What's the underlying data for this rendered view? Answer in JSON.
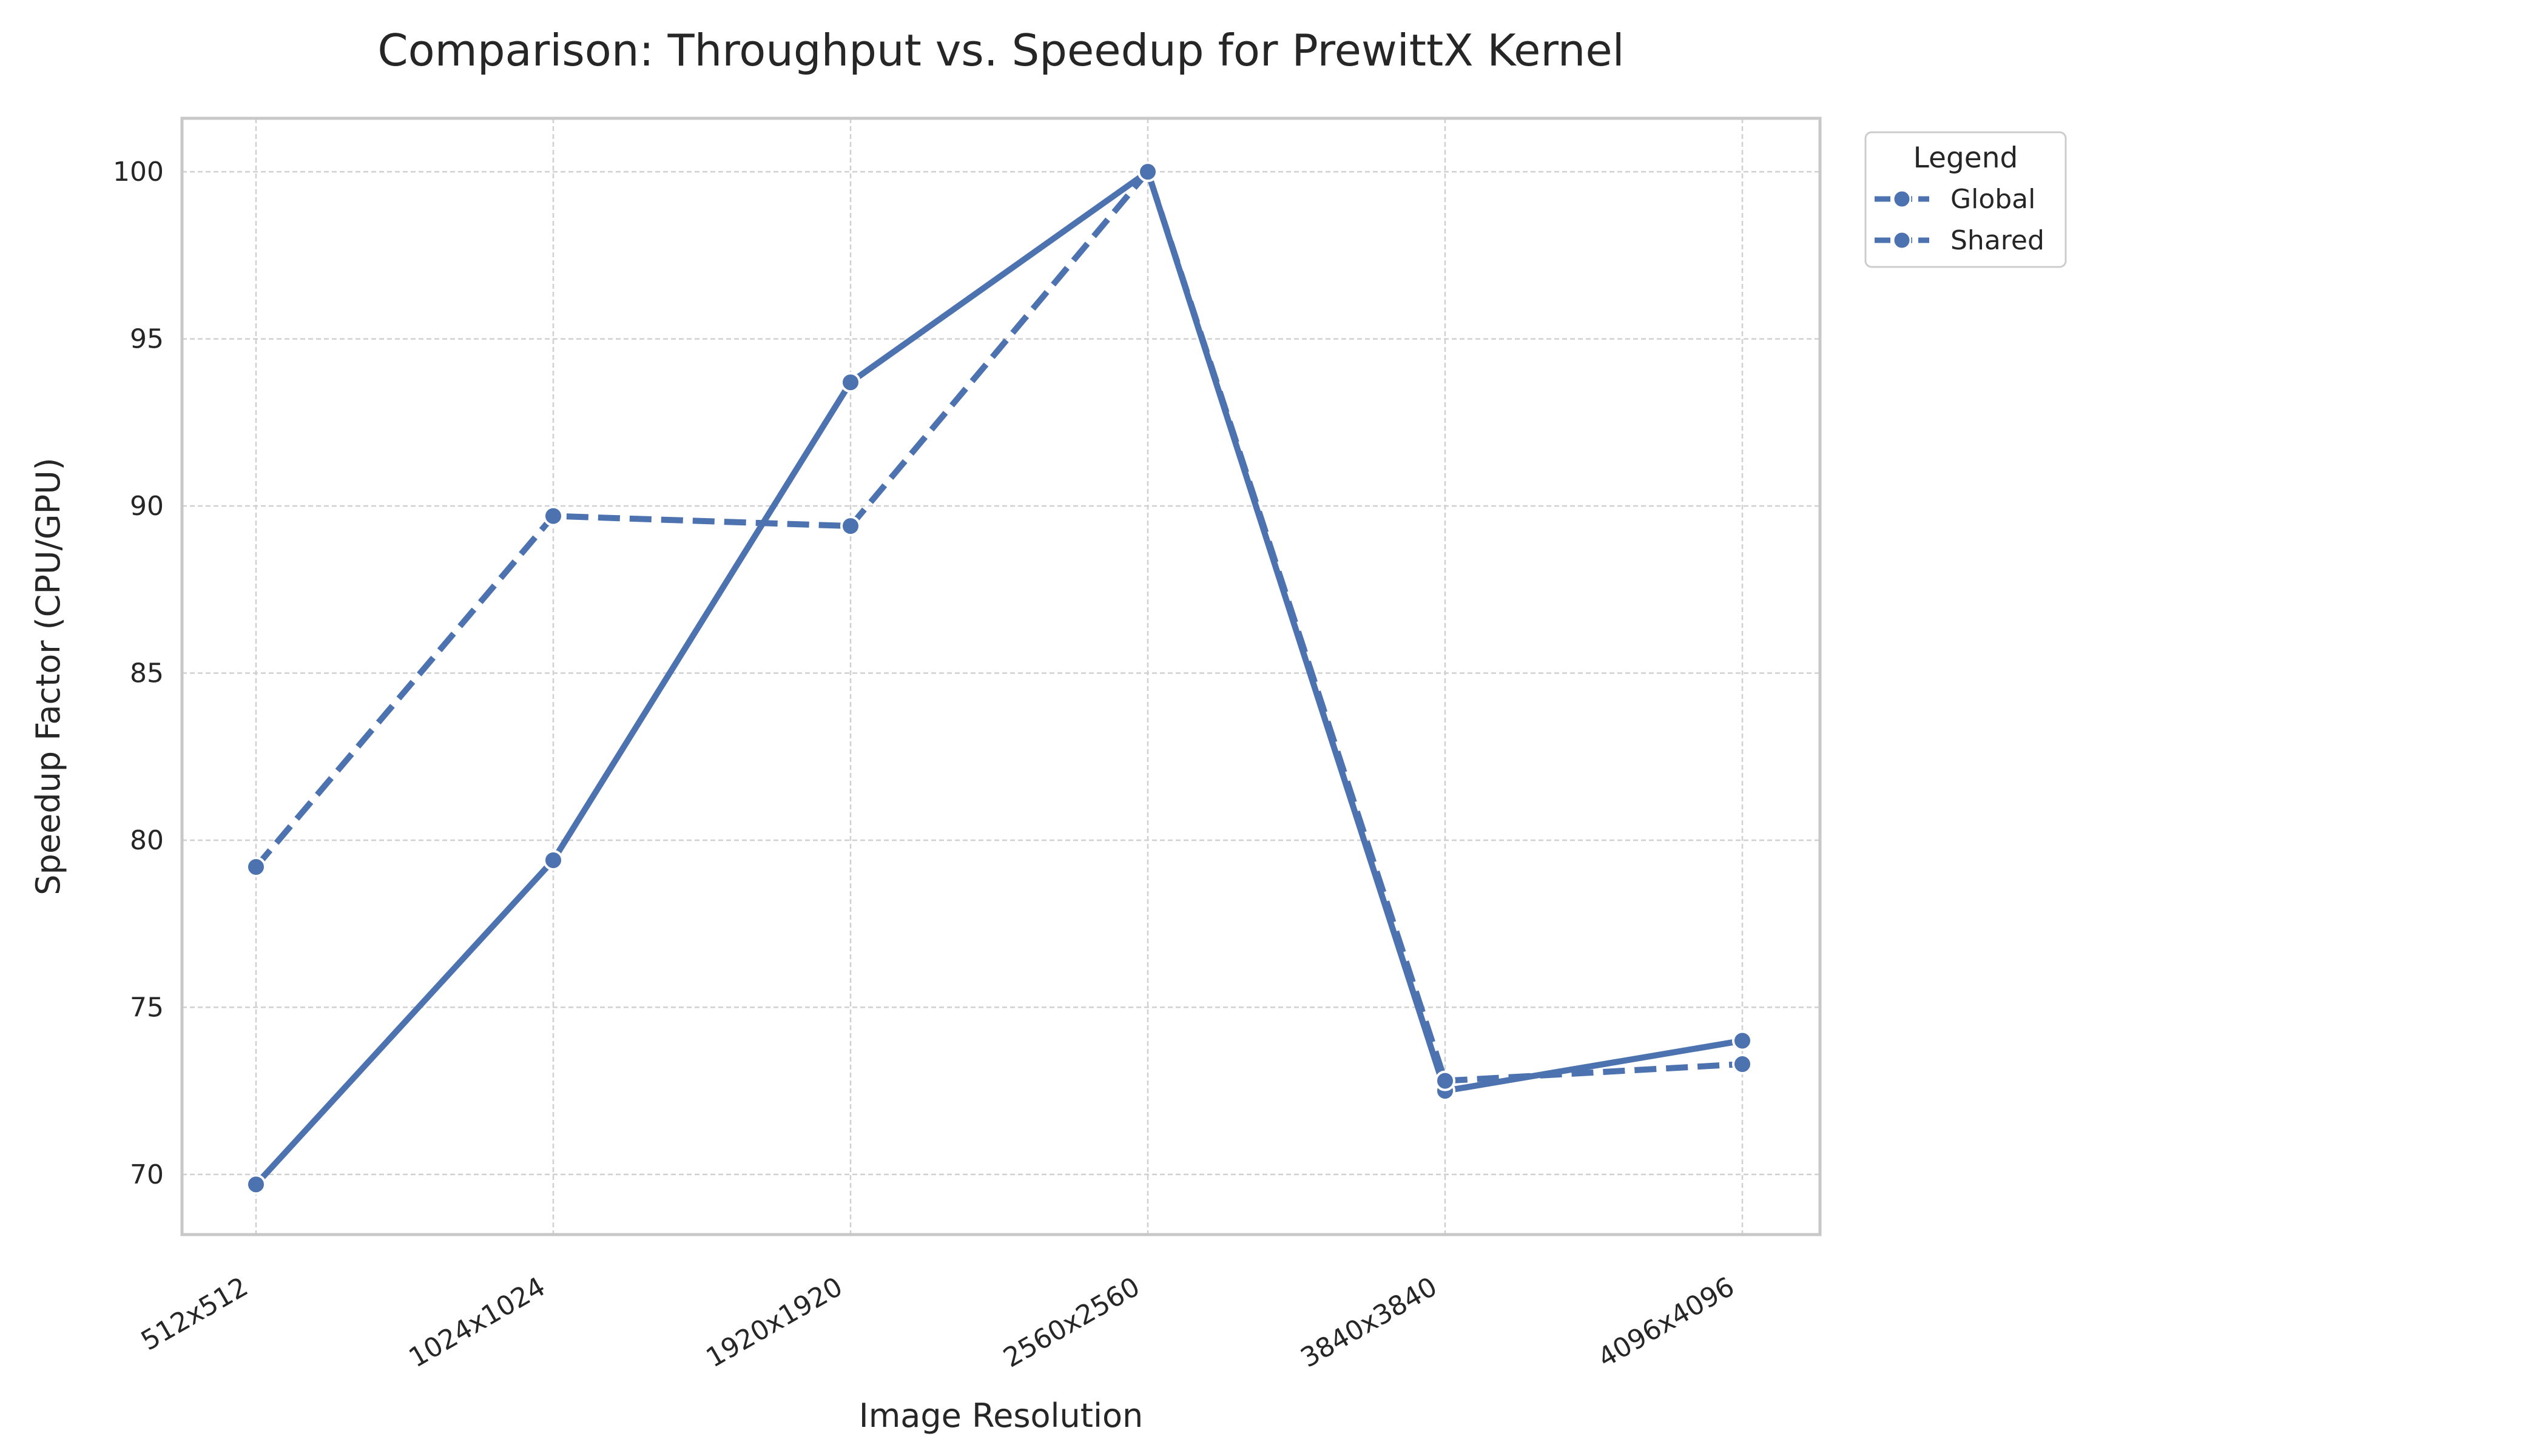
{
  "chart_data": {
    "type": "line",
    "title": "Comparison: Throughput vs. Speedup for PrewittX Kernel",
    "xlabel": "Image Resolution",
    "ylabel": "Speedup Factor (CPU/GPU)",
    "categories": [
      "512x512",
      "1024x1024",
      "1920x1920",
      "2560x2560",
      "3840x3840",
      "4096x4096"
    ],
    "ylim": [
      68.2,
      101.6
    ],
    "yticks": [
      70,
      75,
      80,
      85,
      90,
      95,
      100
    ],
    "grid": true,
    "legend": {
      "title": "Legend",
      "placement": "outside-top-right"
    },
    "series": [
      {
        "name": "Global",
        "values": [
          69.7,
          79.4,
          93.7,
          100.0,
          72.5,
          74.0
        ],
        "color": "#4c72b0",
        "style": "solid"
      },
      {
        "name": "Shared",
        "values": [
          79.2,
          89.7,
          89.4,
          100.0,
          72.8,
          73.3
        ],
        "color": "#4c72b0",
        "style": "dashed"
      }
    ]
  }
}
